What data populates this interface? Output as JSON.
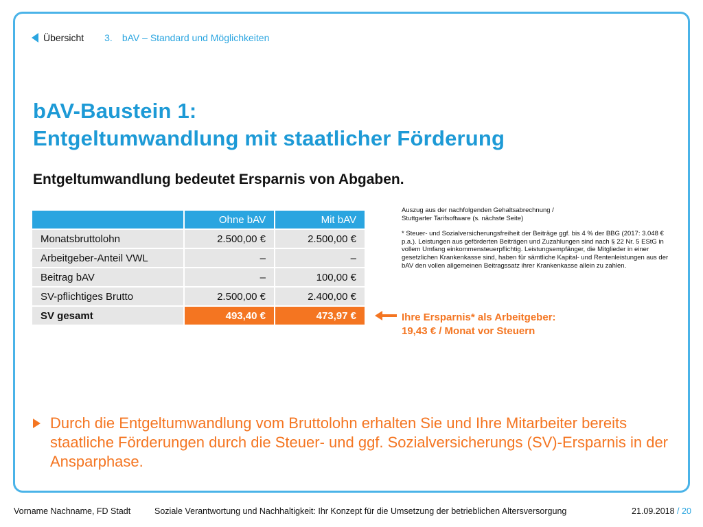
{
  "nav": {
    "back_label": "Übersicht",
    "section_number": "3.",
    "section_title": "bAV – Standard und Möglichkeiten"
  },
  "title": {
    "line1": "bAV-Baustein 1:",
    "line2": "Entgeltumwandlung mit staatlicher Förderung"
  },
  "subtitle": "Entgeltumwandlung bedeutet Ersparnis von Abgaben.",
  "table": {
    "headers": [
      "",
      "Ohne bAV",
      "Mit bAV"
    ],
    "rows": [
      [
        "Monatsbruttolohn",
        "2.500,00 €",
        "2.500,00 €"
      ],
      [
        "Arbeitgeber-Anteil VWL",
        "–",
        "–"
      ],
      [
        "Beitrag bAV",
        "–",
        "100,00 €"
      ],
      [
        "SV-pflichtiges Brutto",
        "2.500,00 €",
        "2.400,00 €"
      ],
      [
        "SV gesamt",
        "493,40 €",
        "473,97 €"
      ]
    ]
  },
  "note": {
    "line1": "Auszug aus der nachfolgenden Gehaltsabrechnung /",
    "line2": "Stuttgarter Tarifsoftware  (s. nächste Seite)",
    "footnote": "* Steuer- und Sozialversicherungsfreiheit der Beiträge ggf. bis 4 % der BBG (2017: 3.048 € p.a.). Leistungen aus geförderten Beiträgen und Zuzahlungen sind nach § 22 Nr. 5 EStG in vollem Umfang einkommensteuerpflichtig. Leistungsempfänger, die Mitglieder in einer gesetzlichen Krankenkasse sind, haben für sämtliche Kapital- und Rentenleistungen aus der bAV den vollen allgemeinen Beitragssatz ihrer Krankenkasse allein zu zahlen."
  },
  "savings": {
    "line1": "Ihre Ersparnis* als Arbeitgeber:",
    "line2": "19,43 € / Monat vor Steuern"
  },
  "bullet": "Durch die Entgeltumwandlung vom Bruttolohn erhalten Sie und Ihre Mitarbeiter bereits staatliche Förderungen durch die Steuer- und ggf. Sozialversicherungs (SV)-Ersparnis in der Ansparphase.",
  "footer": {
    "author": "Vorname Nachname, FD Stadt",
    "topic": "Soziale Verantwortung und Nachhaltigkeit: Ihr Konzept für die Umsetzung der betrieblichen Altersversorgung",
    "date": "21.09.2018",
    "separator": "/",
    "page": "20"
  },
  "colors": {
    "accent_blue": "#2aa5e0",
    "accent_orange": "#f47521"
  }
}
